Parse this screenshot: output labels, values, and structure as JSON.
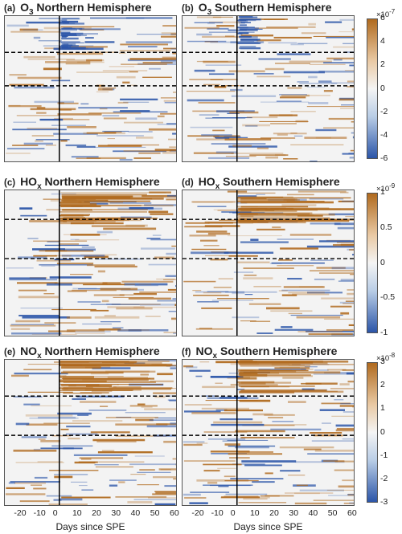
{
  "chart_data": [
    {
      "type": "heatmap",
      "label": "(a)",
      "species": "O",
      "sub": "3",
      "hemisphere": "Northern Hemisphere",
      "xlim": [
        -28,
        60
      ],
      "dashed_rows": [
        0.25,
        0.48
      ],
      "spe_day": 0,
      "colorbar": "O3"
    },
    {
      "type": "heatmap",
      "label": "(b)",
      "species": "O",
      "sub": "3",
      "hemisphere": "Southern Hemisphere",
      "xlim": [
        -28,
        60
      ],
      "dashed_rows": [
        0.25,
        0.48
      ],
      "spe_day": 0,
      "colorbar": "O3"
    },
    {
      "type": "heatmap",
      "label": "(c)",
      "species": "HO",
      "sub": "x",
      "hemisphere": "Northern Hemisphere",
      "xlim": [
        -28,
        60
      ],
      "dashed_rows": [
        0.2,
        0.47
      ],
      "spe_day": 0,
      "colorbar": "HOx"
    },
    {
      "type": "heatmap",
      "label": "(d)",
      "species": "HO",
      "sub": "x",
      "hemisphere": "Southern Hemisphere",
      "xlim": [
        -28,
        60
      ],
      "dashed_rows": [
        0.2,
        0.47
      ],
      "spe_day": 0,
      "colorbar": "HOx"
    },
    {
      "type": "heatmap",
      "label": "(e)",
      "species": "NO",
      "sub": "x",
      "hemisphere": "Northern Hemisphere",
      "xlim": [
        -28,
        60
      ],
      "dashed_rows": [
        0.25,
        0.52
      ],
      "spe_day": 0,
      "colorbar": "NOx"
    },
    {
      "type": "heatmap",
      "label": "(f)",
      "species": "NO",
      "sub": "x",
      "hemisphere": "Southern Hemisphere",
      "xlim": [
        -28,
        60
      ],
      "dashed_rows": [
        0.25,
        0.52
      ],
      "spe_day": 0,
      "colorbar": "NOx"
    }
  ],
  "colorbars": {
    "O3": {
      "scale_base": "10",
      "scale_exp": "-7",
      "ticks": [
        "6",
        "4",
        "2",
        "0",
        "-2",
        "-4",
        "-6"
      ],
      "range": [
        -6,
        6
      ]
    },
    "HOx": {
      "scale_base": "10",
      "scale_exp": "-9",
      "ticks": [
        "1",
        "0.5",
        "0",
        "-0.5",
        "-1"
      ],
      "range": [
        -1,
        1
      ]
    },
    "NOx": {
      "scale_base": "10",
      "scale_exp": "-8",
      "ticks": [
        "3",
        "2",
        "1",
        "0",
        "-1",
        "-2",
        "-3"
      ],
      "range": [
        -3,
        3
      ]
    }
  },
  "x_ticks": [
    "-20",
    "-10",
    "0",
    "10",
    "20",
    "30",
    "40",
    "50",
    "60"
  ],
  "x_tick_values": [
    -20,
    -10,
    0,
    10,
    20,
    30,
    40,
    50,
    60
  ],
  "xlabel": "Days since SPE",
  "colors": {
    "positive": "#b06a1e",
    "negative": "#2b55a8",
    "neutral": "#f3f3f3"
  }
}
